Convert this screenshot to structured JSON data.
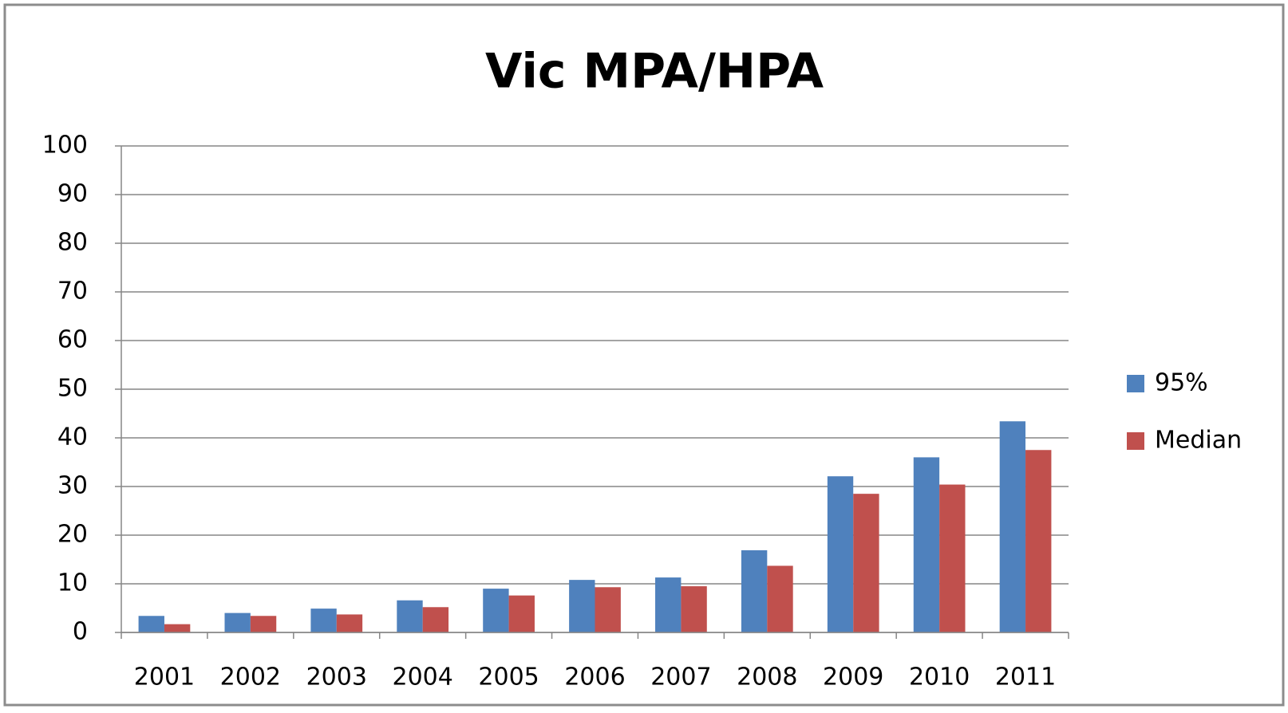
{
  "chart_data": {
    "type": "bar",
    "title": "Vic MPA/HPA",
    "categories": [
      "2001",
      "2002",
      "2003",
      "2004",
      "2005",
      "2006",
      "2007",
      "2008",
      "2009",
      "2010",
      "2011"
    ],
    "series": [
      {
        "name": "95%",
        "color": "#4f81bd",
        "values": [
          3.4,
          4.0,
          4.9,
          6.6,
          9.0,
          10.8,
          11.3,
          16.9,
          32.1,
          36.0,
          43.4
        ]
      },
      {
        "name": "Median",
        "color": "#c0504d",
        "values": [
          1.7,
          3.4,
          3.7,
          5.2,
          7.6,
          9.3,
          9.5,
          13.7,
          28.5,
          30.4,
          37.5
        ]
      }
    ],
    "ylim": [
      0,
      100
    ],
    "yticks": [
      0,
      10,
      20,
      30,
      40,
      50,
      60,
      70,
      80,
      90,
      100
    ],
    "grid": true,
    "legend": "right"
  }
}
